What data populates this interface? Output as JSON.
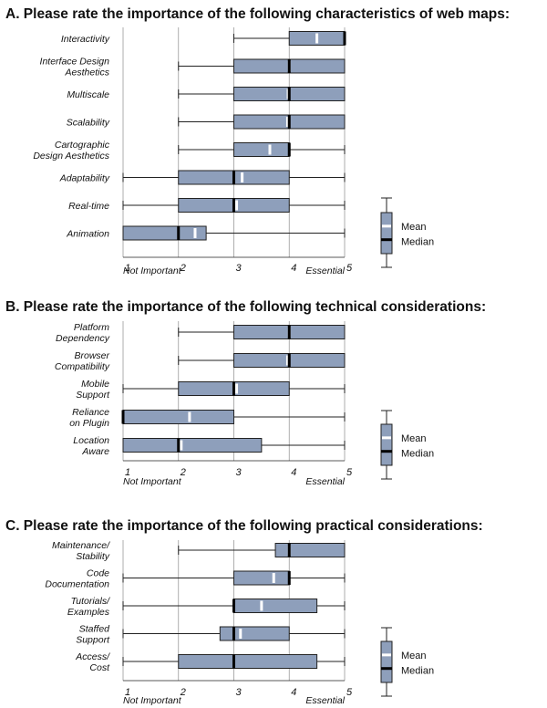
{
  "colors": {
    "box": "#8e9fbb",
    "mean": "#ffffff",
    "median": "#000000",
    "grid": "#9a9a9a",
    "line": "#222222"
  },
  "chart_data": [
    {
      "type": "boxplot",
      "title": "A. Please rate the importance of the following characteristics of web maps:",
      "ticks": [
        "1",
        "2",
        "3",
        "4",
        "5"
      ],
      "xlim": [
        1,
        5
      ],
      "low_label": "Not Important",
      "high_label": "Essential",
      "legend": {
        "mean": "Mean",
        "median": "Median"
      },
      "rows": [
        {
          "label": [
            "Interactivity"
          ],
          "min": 3,
          "q1": 4,
          "median": 5,
          "q3": 5,
          "max": 5,
          "mean": 4.5
        },
        {
          "label": [
            "Interface Design",
            "Aesthetics"
          ],
          "min": 2,
          "q1": 3,
          "median": 4,
          "q3": 5,
          "max": 5,
          "mean": 4.0
        },
        {
          "label": [
            "Multiscale"
          ],
          "min": 2,
          "q1": 3,
          "median": 4,
          "q3": 5,
          "max": 5,
          "mean": 3.98
        },
        {
          "label": [
            "Scalability"
          ],
          "min": 2,
          "q1": 3,
          "median": 4,
          "q3": 5,
          "max": 5,
          "mean": 3.97
        },
        {
          "label": [
            "Cartographic",
            "Design Aesthetics"
          ],
          "min": 2,
          "q1": 3,
          "median": 4,
          "q3": 4,
          "max": 5,
          "mean": 3.65
        },
        {
          "label": [
            "Adaptability"
          ],
          "min": 1,
          "q1": 2,
          "median": 3,
          "q3": 4,
          "max": 5,
          "mean": 3.15
        },
        {
          "label": [
            "Real-time"
          ],
          "min": 1,
          "q1": 2,
          "median": 3,
          "q3": 4,
          "max": 5,
          "mean": 3.05
        },
        {
          "label": [
            "Animation"
          ],
          "min": 1,
          "q1": 1,
          "median": 2,
          "q3": 2.5,
          "max": 5,
          "mean": 2.3
        }
      ]
    },
    {
      "type": "boxplot",
      "title": "B. Please rate the importance of the following technical considerations:",
      "ticks": [
        "1",
        "2",
        "3",
        "4",
        "5"
      ],
      "xlim": [
        1,
        5
      ],
      "low_label": "Not Important",
      "high_label": "Essential",
      "legend": {
        "mean": "Mean",
        "median": "Median"
      },
      "rows": [
        {
          "label": [
            "Platform",
            "Dependency"
          ],
          "min": 2,
          "q1": 3,
          "median": 4,
          "q3": 5,
          "max": 5,
          "mean": 4.0
        },
        {
          "label": [
            "Browser",
            "Compatibility"
          ],
          "min": 2,
          "q1": 3,
          "median": 4,
          "q3": 5,
          "max": 5,
          "mean": 3.97
        },
        {
          "label": [
            "Mobile",
            "Support"
          ],
          "min": 1,
          "q1": 2,
          "median": 3,
          "q3": 4,
          "max": 5,
          "mean": 3.05
        },
        {
          "label": [
            "Reliance",
            "on Plugin"
          ],
          "min": 1,
          "q1": 1,
          "median": 1,
          "q3": 3,
          "max": 5,
          "mean": 2.2
        },
        {
          "label": [
            "Location",
            "Aware"
          ],
          "min": 1,
          "q1": 1,
          "median": 2,
          "q3": 3.5,
          "max": 5,
          "mean": 2.05
        }
      ]
    },
    {
      "type": "boxplot",
      "title": "C. Please rate the importance of the following practical considerations:",
      "ticks": [
        "1",
        "2",
        "3",
        "4",
        "5"
      ],
      "xlim": [
        1,
        5
      ],
      "low_label": "Not Important",
      "high_label": "Essential",
      "legend": {
        "mean": "Mean",
        "median": "Median"
      },
      "rows": [
        {
          "label": [
            "Maintenance/",
            "Stability"
          ],
          "min": 2,
          "q1": 3.75,
          "median": 4,
          "q3": 5,
          "max": 5,
          "mean": 4.0
        },
        {
          "label": [
            "Code",
            "Documentation"
          ],
          "min": 1,
          "q1": 3,
          "median": 4,
          "q3": 4,
          "max": 5,
          "mean": 3.72
        },
        {
          "label": [
            "Tutorials/",
            "Examples"
          ],
          "min": 1,
          "q1": 3,
          "median": 3,
          "q3": 4.5,
          "max": 5,
          "mean": 3.5
        },
        {
          "label": [
            "Staffed",
            "Support"
          ],
          "min": 1,
          "q1": 2.75,
          "median": 3,
          "q3": 4,
          "max": 5,
          "mean": 3.12
        },
        {
          "label": [
            "Access/",
            "Cost"
          ],
          "min": 1,
          "q1": 2,
          "median": 3,
          "q3": 4.5,
          "max": 5,
          "mean": 3.0
        }
      ]
    }
  ]
}
